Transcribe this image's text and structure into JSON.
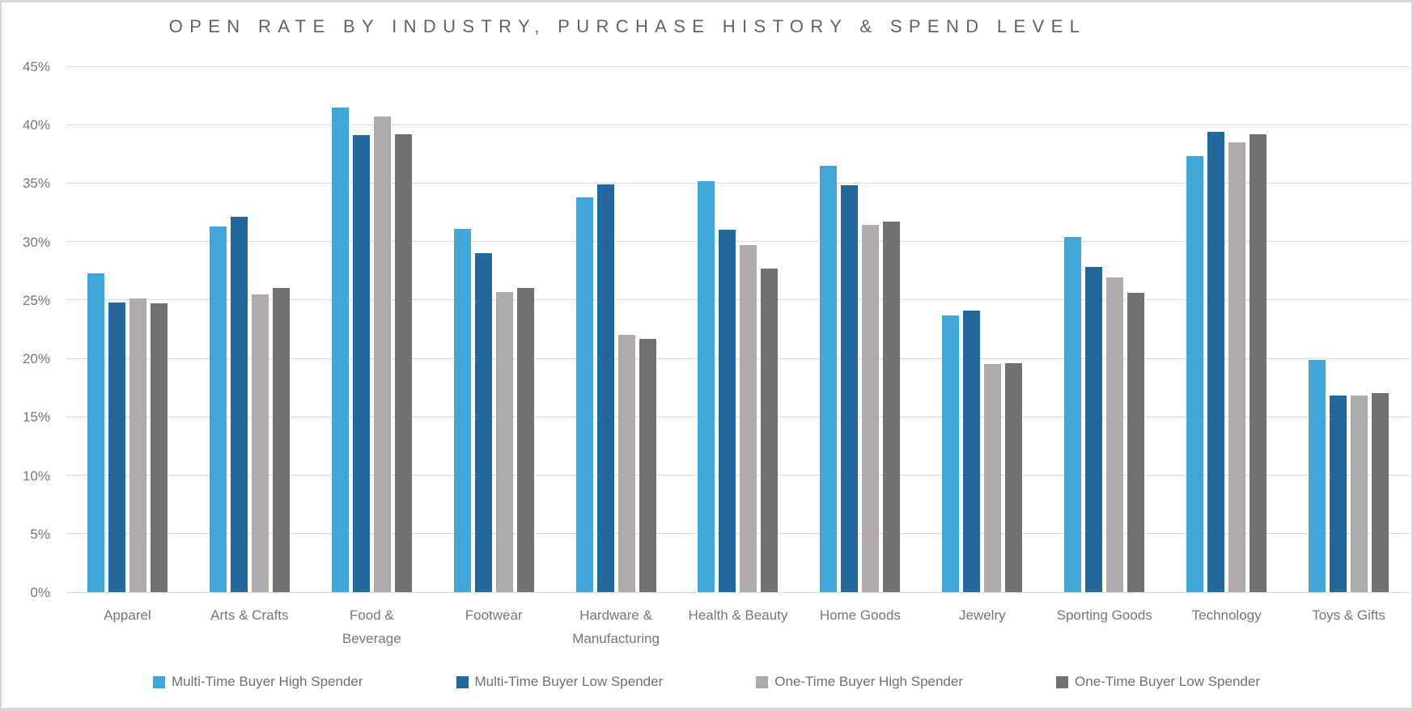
{
  "frame": {
    "background_color": "#FFFFFF",
    "border_color": "#D5D5D5"
  },
  "styles": {
    "title_color": "#606366",
    "axis_label_color": "#76777A",
    "gridline_color": "#DBDBDB",
    "legend_text_color": "#6F7173"
  },
  "chart_data": {
    "type": "bar",
    "title": "OPEN RATE BY INDUSTRY, PURCHASE HISTORY & SPEND LEVEL",
    "xlabel": "",
    "ylabel": "",
    "grid": true,
    "legend_position": "bottom",
    "categories": [
      "Apparel",
      "Arts & Crafts",
      "Food &\nBeverage",
      "Footwear",
      "Hardware &\nManufacturing",
      "Health & Beauty",
      "Home Goods",
      "Jewelry",
      "Sporting Goods",
      "Technology",
      "Toys & Gifts"
    ],
    "y_axis": {
      "min": 0,
      "max": 45,
      "step": 5,
      "unit": "%",
      "tick_labels": [
        "0%",
        "5%",
        "10%",
        "15%",
        "20%",
        "25%",
        "30%",
        "35%",
        "40%",
        "45%"
      ]
    },
    "series": [
      {
        "name": "Multi-Time Buyer High Spender",
        "color": "#41A6D9",
        "values": [
          27.3,
          31.3,
          41.5,
          31.1,
          33.8,
          35.2,
          36.5,
          23.7,
          30.4,
          37.3,
          19.9
        ]
      },
      {
        "name": "Multi-Time Buyer Low Spender",
        "color": "#22689D",
        "values": [
          24.8,
          32.1,
          39.1,
          29.0,
          34.9,
          31.0,
          34.8,
          24.1,
          27.8,
          39.4,
          16.8
        ]
      },
      {
        "name": "One-Time Buyer High Spender",
        "color": "#AFABAA",
        "values": [
          25.1,
          25.5,
          40.7,
          25.7,
          22.0,
          29.7,
          31.4,
          19.5,
          26.9,
          38.5,
          16.8
        ]
      },
      {
        "name": "One-Time Buyer Low Spender",
        "color": "#737070",
        "values": [
          24.7,
          26.0,
          39.2,
          26.0,
          21.7,
          27.7,
          31.7,
          19.6,
          25.6,
          39.2,
          17.0
        ]
      }
    ]
  }
}
